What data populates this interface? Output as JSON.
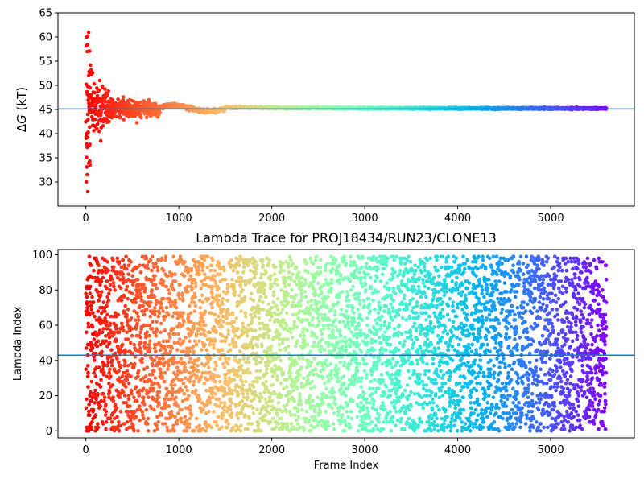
{
  "chart_data": [
    {
      "type": "scatter",
      "title": "",
      "xlabel": "",
      "ylabel": "ΔG (kT)",
      "ylabel_symbol": "Δ",
      "ylabel_var": "G",
      "ylabel_unit": " (kT)",
      "xlim": [
        -300,
        5900
      ],
      "ylim": [
        25,
        65
      ],
      "xticks": [
        0,
        1000,
        2000,
        3000,
        4000,
        5000
      ],
      "yticks": [
        30,
        35,
        40,
        45,
        50,
        55,
        60,
        65
      ],
      "hline": 45.1,
      "hline_color": "#1f77b4",
      "colormap": "rainbow (red at frame 0 to violet at last frame)",
      "n_frames": 5600,
      "series": [
        {
          "description_values": {
            "x_range": [
              0,
              5600
            ],
            "early_scatter": [
              [
                10,
                60.0
              ],
              [
                20,
                60.2
              ],
              [
                30,
                61.0
              ],
              [
                15,
                57.0
              ],
              [
                40,
                57.1
              ],
              [
                35,
                52.8
              ],
              [
                30,
                52.0
              ],
              [
                5,
                50.2
              ],
              [
                45,
                49.5
              ],
              [
                50,
                48.0
              ],
              [
                20,
                44.0
              ],
              [
                60,
                45.0
              ],
              [
                10,
                40.0
              ],
              [
                25,
                40.3
              ],
              [
                35,
                37.5
              ],
              [
                10,
                37.8
              ],
              [
                30,
                33.9
              ],
              [
                45,
                33.5
              ],
              [
                15,
                31.5
              ],
              [
                5,
                30.0
              ],
              [
                20,
                28.0
              ],
              [
                80,
                46.5
              ],
              [
                100,
                43.0
              ],
              [
                120,
                41.0
              ],
              [
                150,
                51.0
              ],
              [
                160,
                38.5
              ],
              [
                200,
                47.5
              ],
              [
                250,
                42.5
              ],
              [
                300,
                46.0
              ],
              [
                400,
                47.0
              ]
            ],
            "converged_value": 45.2
          }
        }
      ],
      "grid": false,
      "legend": "none"
    },
    {
      "type": "scatter",
      "title": "Lambda Trace for PROJ18434/RUN23/CLONE13",
      "xlabel": "Frame Index",
      "ylabel": "Lambda Index",
      "xlim": [
        -300,
        5900
      ],
      "ylim": [
        -4,
        103
      ],
      "xticks": [
        0,
        1000,
        2000,
        3000,
        4000,
        5000
      ],
      "yticks": [
        0,
        20,
        40,
        60,
        80,
        100
      ],
      "hline": 43,
      "hline_color": "#1f77b4",
      "colormap": "rainbow (red at frame 0 to violet at last frame)",
      "n_frames": 5600,
      "value_range": [
        0,
        99
      ],
      "grid": false,
      "legend": "none"
    }
  ]
}
